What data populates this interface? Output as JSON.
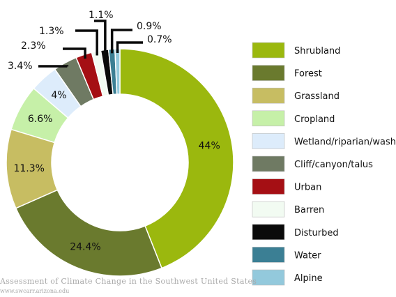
{
  "chart_data": {
    "type": "pie",
    "variant": "donut",
    "title": "",
    "legend_placement": "right",
    "categories": [
      "Shrubland",
      "Forest",
      "Grassland",
      "Cropland",
      "Wetland/riparian/wash",
      "Cliff/canyon/talus",
      "Urban",
      "Barren",
      "Disturbed",
      "Water",
      "Alpine"
    ],
    "values": [
      44,
      24.4,
      11.3,
      6.6,
      4,
      3.4,
      2.3,
      1.3,
      1.1,
      0.9,
      0.7
    ],
    "labels": [
      "44%",
      "24.4%",
      "11.3%",
      "6.6%",
      "4%",
      "3.4%",
      "2.3%",
      "1.3%",
      "1.1%",
      "0.9%",
      "0.7%"
    ],
    "colors": [
      "#9bb80e",
      "#6a7a2e",
      "#c7bd62",
      "#c6f0a8",
      "#ddecfb",
      "#6f7a63",
      "#a50f14",
      "#f2fbf2",
      "#0a0a0a",
      "#3b7f94",
      "#93c9dc"
    ]
  },
  "footer": {
    "line1": "Assessment of Climate Change in the Southwest United States",
    "line2": "www.swcarr.arizona.edu"
  }
}
